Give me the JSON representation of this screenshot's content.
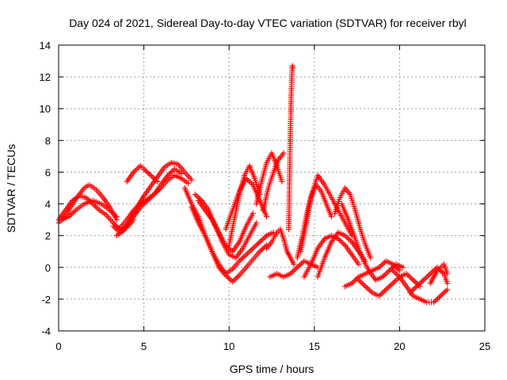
{
  "chart_data": {
    "type": "scatter",
    "title": "Day 024 of 2021, Sidereal Day-to-day VTEC variation (SDTVAR) for receiver rbyl",
    "xlabel": "GPS time / hours",
    "ylabel": "SDTVAR / TECUs",
    "xlim": [
      0,
      25
    ],
    "ylim": [
      -4,
      14
    ],
    "xticks": [
      0,
      5,
      10,
      15,
      20,
      25
    ],
    "yticks": [
      -4,
      -2,
      0,
      2,
      4,
      6,
      8,
      10,
      12,
      14
    ],
    "grid": true,
    "marker": "+",
    "series": [
      {
        "name": "arc-1",
        "color": "#ff0000",
        "x": [
          0.0,
          0.4,
          0.8,
          1.2,
          1.6,
          2.0,
          2.4,
          2.8,
          3.2,
          3.6,
          4.0,
          4.4
        ],
        "y": [
          3.0,
          3.6,
          4.2,
          4.5,
          4.4,
          4.0,
          3.6,
          3.3,
          2.8,
          2.4,
          2.5,
          3.0
        ]
      },
      {
        "name": "arc-2",
        "color": "#ff0000",
        "x": [
          0.0,
          0.5,
          1.0,
          1.5,
          1.8,
          2.2,
          2.6,
          3.0,
          3.4
        ],
        "y": [
          2.8,
          3.4,
          4.3,
          5.0,
          5.2,
          4.9,
          4.4,
          3.8,
          3.0
        ]
      },
      {
        "name": "arc-3",
        "color": "#ff0000",
        "x": [
          0.2,
          0.6,
          1.0,
          1.5,
          2.0,
          2.5,
          3.0,
          3.4
        ],
        "y": [
          3.0,
          3.2,
          3.6,
          4.0,
          4.2,
          4.0,
          3.6,
          3.2
        ]
      },
      {
        "name": "arc-4",
        "color": "#ff0000",
        "x": [
          3.2,
          3.6,
          4.0,
          4.4,
          4.8,
          5.2,
          5.6,
          6.0,
          6.4,
          6.8,
          7.2
        ],
        "y": [
          2.6,
          2.2,
          2.6,
          3.2,
          3.8,
          4.2,
          4.6,
          5.2,
          5.8,
          6.2,
          5.9
        ]
      },
      {
        "name": "arc-5",
        "color": "#ff0000",
        "x": [
          3.4,
          3.8,
          4.2,
          4.6,
          5.0,
          5.4,
          5.8,
          6.2,
          6.6,
          7.0,
          7.4,
          7.8
        ],
        "y": [
          2.0,
          2.3,
          3.0,
          3.8,
          4.5,
          5.1,
          5.7,
          6.3,
          6.6,
          6.5,
          6.0,
          5.5
        ]
      },
      {
        "name": "arc-6",
        "color": "#ff0000",
        "x": [
          3.6,
          4.0,
          4.4,
          4.8,
          5.2,
          5.6,
          6.0,
          6.4,
          6.8,
          7.2,
          7.6
        ],
        "y": [
          2.5,
          3.0,
          3.6,
          4.0,
          4.3,
          4.6,
          5.0,
          5.5,
          5.8,
          5.6,
          5.3
        ]
      },
      {
        "name": "arc-7",
        "color": "#ff0000",
        "x": [
          4.0,
          4.4,
          4.8,
          5.0,
          5.4,
          5.8
        ],
        "y": [
          5.4,
          6.0,
          6.4,
          6.2,
          5.8,
          5.4
        ]
      },
      {
        "name": "arc-8",
        "color": "#ff0000",
        "x": [
          7.4,
          7.8,
          8.2,
          8.6,
          9.0,
          9.4,
          9.8,
          10.2,
          10.6,
          11.0,
          11.4,
          11.8,
          12.2,
          12.6
        ],
        "y": [
          5.0,
          4.0,
          3.2,
          2.0,
          1.0,
          0.2,
          -0.4,
          -0.1,
          0.4,
          0.8,
          1.2,
          1.6,
          2.0,
          2.2
        ]
      },
      {
        "name": "arc-9",
        "color": "#ff0000",
        "x": [
          7.8,
          8.2,
          8.6,
          9.0,
          9.4,
          9.8,
          10.2,
          10.6,
          11.0,
          11.4,
          11.8,
          12.2
        ],
        "y": [
          3.8,
          2.8,
          2.0,
          1.0,
          0.0,
          -0.5,
          -0.9,
          -0.5,
          0.0,
          0.5,
          1.0,
          1.4
        ]
      },
      {
        "name": "arc-10",
        "color": "#ff0000",
        "x": [
          8.0,
          8.4,
          8.8,
          9.2,
          9.6,
          10.0,
          10.4,
          10.8,
          11.2,
          11.6
        ],
        "y": [
          4.6,
          4.2,
          3.6,
          2.6,
          1.6,
          0.8,
          0.6,
          1.2,
          2.0,
          2.8
        ]
      },
      {
        "name": "arc-11",
        "color": "#ff0000",
        "x": [
          8.2,
          8.6,
          9.0,
          9.4,
          9.8,
          10.2,
          10.6,
          11.0,
          11.4
        ],
        "y": [
          4.2,
          3.6,
          3.0,
          2.2,
          1.4,
          1.0,
          1.6,
          2.6,
          3.4
        ]
      },
      {
        "name": "arc-12",
        "color": "#ff0000",
        "x": [
          9.8,
          10.2,
          10.6,
          11.0,
          11.4,
          11.8,
          12.2
        ],
        "y": [
          2.4,
          3.6,
          4.8,
          5.6,
          5.2,
          4.2,
          3.2
        ]
      },
      {
        "name": "arc-13",
        "color": "#ff0000",
        "x": [
          10.0,
          10.3,
          10.6,
          10.9,
          11.2,
          11.5,
          11.8
        ],
        "y": [
          1.4,
          3.0,
          4.6,
          5.8,
          6.4,
          5.6,
          4.6
        ]
      },
      {
        "name": "arc-14",
        "color": "#ff0000",
        "x": [
          11.6,
          11.9,
          12.2,
          12.5,
          12.8,
          13.1
        ],
        "y": [
          4.0,
          5.4,
          6.6,
          7.2,
          6.4,
          5.4
        ]
      },
      {
        "name": "arc-15",
        "color": "#ff0000",
        "x": [
          12.0,
          12.3,
          12.6,
          12.9,
          13.2
        ],
        "y": [
          3.6,
          5.0,
          6.0,
          6.8,
          7.2
        ]
      },
      {
        "name": "arc-16",
        "color": "#ff0000",
        "x": [
          12.2,
          12.5,
          12.8,
          13.0,
          13.2,
          13.4,
          13.6,
          13.8
        ],
        "y": [
          1.2,
          1.6,
          2.2,
          2.4,
          1.8,
          1.0,
          0.6,
          0.2
        ]
      },
      {
        "name": "arc-17",
        "color": "#ff0000",
        "x": [
          12.4,
          12.8,
          13.2,
          13.6,
          14.0,
          14.4,
          14.8,
          15.2
        ],
        "y": [
          -0.6,
          -0.4,
          -0.6,
          -0.4,
          0.0,
          0.4,
          0.2,
          0.0
        ]
      },
      {
        "name": "spike",
        "color": "#ff0000",
        "x": [
          13.5,
          13.52,
          13.54,
          13.56,
          13.58,
          13.6,
          13.62,
          13.64,
          13.66,
          13.68,
          13.7,
          13.72,
          13.74
        ],
        "y": [
          2.4,
          3.5,
          5.0,
          6.5,
          7.8,
          8.8,
          9.6,
          10.8,
          11.4,
          12.0,
          12.5,
          12.7,
          12.6
        ]
      },
      {
        "name": "arc-18",
        "color": "#ff0000",
        "x": [
          14.2,
          14.5,
          14.8,
          15.1,
          15.4,
          15.7,
          16.0
        ],
        "y": [
          1.0,
          2.6,
          4.4,
          5.2,
          4.8,
          4.0,
          3.2
        ]
      },
      {
        "name": "arc-19",
        "color": "#ff0000",
        "x": [
          14.0,
          14.3,
          14.6,
          14.9,
          15.2,
          15.6,
          16.0,
          16.4,
          16.8,
          17.2
        ],
        "y": [
          0.6,
          2.0,
          3.6,
          4.8,
          5.8,
          5.2,
          4.4,
          3.6,
          2.8,
          2.0
        ]
      },
      {
        "name": "arc-20",
        "color": "#ff0000",
        "x": [
          14.4,
          14.8,
          15.2,
          15.6,
          16.0,
          16.4,
          16.8,
          17.2,
          17.6
        ],
        "y": [
          -0.6,
          0.2,
          1.2,
          1.8,
          2.0,
          1.8,
          1.4,
          0.8,
          0.2
        ]
      },
      {
        "name": "arc-21",
        "color": "#ff0000",
        "x": [
          15.2,
          15.6,
          16.0,
          16.4,
          16.8,
          17.2,
          17.6,
          18.0
        ],
        "y": [
          -0.6,
          0.6,
          1.6,
          2.2,
          2.0,
          1.6,
          1.0,
          0.4
        ]
      },
      {
        "name": "arc-22",
        "color": "#ff0000",
        "x": [
          16.2,
          16.5,
          16.8,
          17.1,
          17.4,
          17.7,
          18.0,
          18.3
        ],
        "y": [
          3.4,
          4.4,
          5.0,
          4.6,
          3.6,
          2.4,
          1.4,
          0.6
        ]
      },
      {
        "name": "arc-23",
        "color": "#ff0000",
        "x": [
          16.6,
          17.0,
          17.4,
          17.8,
          18.2,
          18.6,
          19.0,
          19.4,
          19.8,
          20.2
        ],
        "y": [
          4.0,
          3.0,
          1.8,
          0.6,
          -0.2,
          -0.8,
          -0.6,
          -0.2,
          0.2,
          0.0
        ]
      },
      {
        "name": "arc-24",
        "color": "#ff0000",
        "x": [
          16.8,
          17.2,
          17.6,
          18.0,
          18.4,
          18.8,
          19.2,
          19.6,
          20.0
        ],
        "y": [
          -1.2,
          -1.0,
          -0.6,
          -0.4,
          -0.2,
          0.0,
          0.4,
          0.2,
          -0.2
        ]
      },
      {
        "name": "arc-25",
        "color": "#ff0000",
        "x": [
          17.6,
          18.0,
          18.4,
          18.8,
          19.2,
          19.6,
          20.0,
          20.4,
          20.8,
          21.2
        ],
        "y": [
          -0.8,
          -1.2,
          -1.6,
          -1.8,
          -1.4,
          -1.0,
          -0.6,
          -0.4,
          -0.8,
          -1.2
        ]
      },
      {
        "name": "arc-26",
        "color": "#ff0000",
        "x": [
          19.6,
          20.0,
          20.4,
          20.8,
          21.2,
          21.6,
          22.0,
          22.4,
          22.8
        ],
        "y": [
          -0.2,
          -0.6,
          -1.2,
          -1.8,
          -2.0,
          -2.2,
          -2.2,
          -1.8,
          -1.4
        ]
      },
      {
        "name": "arc-27",
        "color": "#ff0000",
        "x": [
          20.6,
          21.0,
          21.4,
          21.8,
          22.2,
          22.6,
          22.8
        ],
        "y": [
          -1.6,
          -1.2,
          -0.8,
          -0.4,
          0.0,
          -0.4,
          -1.0
        ]
      },
      {
        "name": "arc-28",
        "color": "#ff0000",
        "x": [
          21.8,
          22.0,
          22.2,
          22.4,
          22.6,
          22.8
        ],
        "y": [
          -1.0,
          -0.6,
          -0.2,
          0.0,
          0.2,
          -0.4
        ]
      }
    ]
  }
}
